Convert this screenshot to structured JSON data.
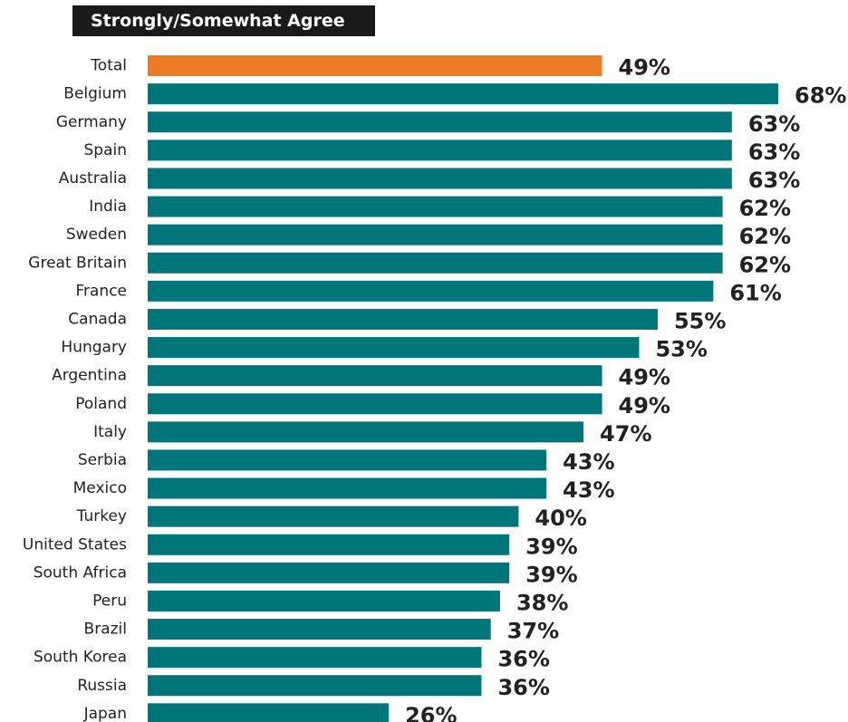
{
  "chart_data": {
    "type": "bar",
    "orientation": "horizontal",
    "title": "Strongly/Somewhat Agree",
    "categories": [
      "Total",
      "Belgium",
      "Germany",
      "Spain",
      "Australia",
      "India",
      "Sweden",
      "Great Britain",
      "France",
      "Canada",
      "Hungary",
      "Argentina",
      "Poland",
      "Italy",
      "Serbia",
      "Mexico",
      "Turkey",
      "United States",
      "South Africa",
      "Peru",
      "Brazil",
      "South Korea",
      "Russia",
      "Japan"
    ],
    "values": [
      49,
      68,
      63,
      63,
      63,
      62,
      62,
      62,
      61,
      55,
      53,
      49,
      49,
      47,
      43,
      43,
      40,
      39,
      39,
      38,
      37,
      36,
      36,
      26
    ],
    "value_labels": [
      "49%",
      "68%",
      "63%",
      "63%",
      "63%",
      "62%",
      "62%",
      "62%",
      "61%",
      "55%",
      "53%",
      "49%",
      "49%",
      "47%",
      "43%",
      "43%",
      "40%",
      "39%",
      "39%",
      "38%",
      "37%",
      "36%",
      "36%",
      "26%"
    ],
    "highlight_category": "Total",
    "colors": {
      "bar": "#00757a",
      "highlight": "#ec7b25",
      "header_bg": "#1a1a1a",
      "header_text": "#ffffff",
      "text": "#222222"
    },
    "xlim": [
      0,
      68
    ],
    "grid": false,
    "legend": "none"
  }
}
